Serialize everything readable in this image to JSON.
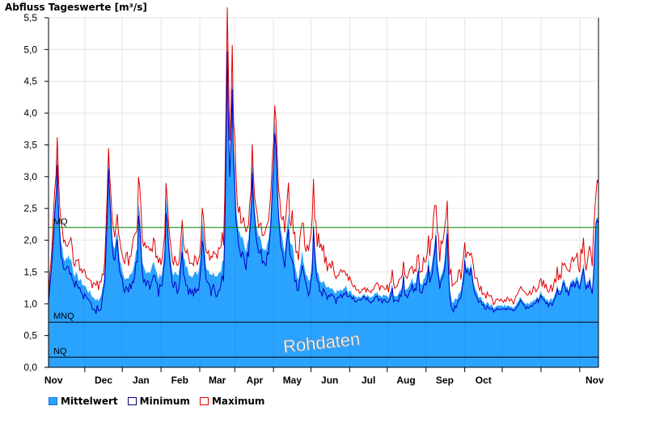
{
  "chart_data": {
    "type": "area",
    "title": "Abfluss Tageswerte [m³/s]",
    "ylim": [
      0,
      5.5
    ],
    "yticks": [
      "0,0",
      "0,5",
      "1,0",
      "1,5",
      "2,0",
      "2,5",
      "3,0",
      "3,5",
      "4,0",
      "4,5",
      "5,0",
      "5,5"
    ],
    "months": [
      "Nov",
      "Dec",
      "Jan",
      "Feb",
      "Mar",
      "Apr",
      "May",
      "Jun",
      "Jul",
      "Aug",
      "Sep",
      "Oct",
      "Nov"
    ],
    "grid": true,
    "watermark": "Rohdaten",
    "reference_lines": [
      {
        "label": "MQ",
        "value": 2.2,
        "color": "#008000"
      },
      {
        "label": "MNQ",
        "value": 0.71,
        "color": "#000000"
      },
      {
        "label": "NQ",
        "value": 0.16,
        "color": "#000000"
      }
    ],
    "series": [
      {
        "name": "Mittelwert",
        "color": "#2aa3ff"
      },
      {
        "name": "Minimum",
        "color": "#0000c0"
      },
      {
        "name": "Maximum",
        "color": "#e00000"
      }
    ],
    "mean_keypoints": [
      [
        0,
        1.1
      ],
      [
        2,
        1.6
      ],
      [
        4,
        2.2
      ],
      [
        6,
        2.9
      ],
      [
        7,
        3.3
      ],
      [
        8,
        2.6
      ],
      [
        10,
        2.0
      ],
      [
        12,
        1.7
      ],
      [
        16,
        1.75
      ],
      [
        18,
        1.7
      ],
      [
        20,
        1.5
      ],
      [
        24,
        1.4
      ],
      [
        28,
        1.3
      ],
      [
        32,
        1.2
      ],
      [
        36,
        1.1
      ],
      [
        40,
        1.05
      ],
      [
        43,
        1.2
      ],
      [
        45,
        1.5
      ],
      [
        47,
        2.6
      ],
      [
        48,
        3.2
      ],
      [
        49,
        2.8
      ],
      [
        51,
        2.0
      ],
      [
        53,
        1.9
      ],
      [
        55,
        2.2
      ],
      [
        57,
        1.7
      ],
      [
        60,
        1.4
      ],
      [
        64,
        1.4
      ],
      [
        67,
        1.5
      ],
      [
        69,
        1.7
      ],
      [
        71,
        1.9
      ],
      [
        72,
        2.6
      ],
      [
        73,
        2.4
      ],
      [
        75,
        1.6
      ],
      [
        78,
        1.45
      ],
      [
        82,
        1.55
      ],
      [
        84,
        1.7
      ],
      [
        86,
        1.5
      ],
      [
        88,
        1.4
      ],
      [
        91,
        1.5
      ],
      [
        93,
        1.9
      ],
      [
        94,
        2.8
      ],
      [
        95,
        2.4
      ],
      [
        97,
        1.8
      ],
      [
        99,
        1.5
      ],
      [
        102,
        1.45
      ],
      [
        104,
        1.5
      ],
      [
        106,
        1.8
      ],
      [
        107,
        2.1
      ],
      [
        108,
        1.7
      ],
      [
        112,
        1.5
      ],
      [
        116,
        1.45
      ],
      [
        120,
        1.5
      ],
      [
        122,
        1.9
      ],
      [
        123,
        2.3
      ],
      [
        124,
        2.2
      ],
      [
        126,
        1.6
      ],
      [
        128,
        1.5
      ],
      [
        131,
        1.5
      ],
      [
        134,
        1.45
      ],
      [
        137,
        1.5
      ],
      [
        140,
        1.7
      ],
      [
        141,
        2.4
      ],
      [
        143,
        5.0
      ],
      [
        144,
        4.0
      ],
      [
        145,
        3.2
      ],
      [
        147,
        4.6
      ],
      [
        148,
        3.6
      ],
      [
        150,
        2.6
      ],
      [
        152,
        2.2
      ],
      [
        154,
        2.1
      ],
      [
        156,
        2.0
      ],
      [
        158,
        1.8
      ],
      [
        160,
        2.0
      ],
      [
        162,
        2.7
      ],
      [
        163,
        3.2
      ],
      [
        164,
        2.8
      ],
      [
        166,
        2.2
      ],
      [
        169,
        2.0
      ],
      [
        172,
        1.85
      ],
      [
        174,
        1.8
      ],
      [
        177,
        2.1
      ],
      [
        178,
        2.5
      ],
      [
        180,
        3.3
      ],
      [
        181,
        4.0
      ],
      [
        182,
        3.5
      ],
      [
        184,
        2.5
      ],
      [
        186,
        2.1
      ],
      [
        189,
        1.8
      ],
      [
        191,
        2.2
      ],
      [
        192,
        2.5
      ],
      [
        193,
        2.0
      ],
      [
        196,
        1.8
      ],
      [
        198,
        1.5
      ],
      [
        200,
        1.4
      ],
      [
        202,
        1.7
      ],
      [
        203,
        1.9
      ],
      [
        204,
        1.6
      ],
      [
        206,
        1.5
      ],
      [
        209,
        1.35
      ],
      [
        211,
        1.7
      ],
      [
        212,
        2.4
      ],
      [
        213,
        1.9
      ],
      [
        215,
        1.5
      ],
      [
        218,
        1.35
      ],
      [
        222,
        1.3
      ],
      [
        226,
        1.25
      ],
      [
        230,
        1.2
      ],
      [
        234,
        1.2
      ],
      [
        238,
        1.3
      ],
      [
        240,
        1.2
      ],
      [
        244,
        1.15
      ],
      [
        248,
        1.1
      ],
      [
        252,
        1.12
      ],
      [
        256,
        1.1
      ],
      [
        260,
        1.15
      ],
      [
        264,
        1.15
      ],
      [
        268,
        1.12
      ],
      [
        272,
        1.1
      ],
      [
        275,
        1.3
      ],
      [
        276,
        1.1
      ],
      [
        280,
        1.15
      ],
      [
        283,
        1.3
      ],
      [
        284,
        1.5
      ],
      [
        285,
        1.2
      ],
      [
        288,
        1.25
      ],
      [
        291,
        1.45
      ],
      [
        292,
        1.3
      ],
      [
        294,
        1.3
      ],
      [
        296,
        1.6
      ],
      [
        297,
        1.3
      ],
      [
        300,
        1.35
      ],
      [
        303,
        1.55
      ],
      [
        304,
        1.8
      ],
      [
        305,
        1.5
      ],
      [
        307,
        1.6
      ],
      [
        309,
        1.95
      ],
      [
        310,
        2.2
      ],
      [
        311,
        1.7
      ],
      [
        313,
        1.4
      ],
      [
        315,
        1.5
      ],
      [
        317,
        1.7
      ],
      [
        318,
        2.0
      ],
      [
        319,
        2.3
      ],
      [
        320,
        1.6
      ],
      [
        321,
        1.2
      ],
      [
        323,
        1.05
      ],
      [
        327,
        1.1
      ],
      [
        330,
        1.25
      ],
      [
        332,
        1.5
      ],
      [
        333,
        1.75
      ],
      [
        334,
        1.5
      ],
      [
        336,
        1.6
      ],
      [
        338,
        1.6
      ],
      [
        340,
        1.3
      ],
      [
        343,
        1.15
      ],
      [
        346,
        1.1
      ],
      [
        349,
        1.0
      ],
      [
        352,
        1.0
      ],
      [
        356,
        0.95
      ],
      [
        360,
        1.0
      ],
      [
        364,
        0.95
      ],
      [
        368,
        1.0
      ],
      [
        372,
        0.95
      ],
      [
        376,
        1.05
      ],
      [
        378,
        1.1
      ],
      [
        380,
        1.0
      ],
      [
        384,
        1.0
      ],
      [
        388,
        1.05
      ],
      [
        392,
        1.1
      ],
      [
        394,
        1.2
      ],
      [
        396,
        1.1
      ],
      [
        400,
        1.05
      ],
      [
        404,
        1.1
      ],
      [
        407,
        1.3
      ],
      [
        408,
        1.2
      ],
      [
        410,
        1.25
      ],
      [
        412,
        1.4
      ],
      [
        414,
        1.3
      ],
      [
        416,
        1.2
      ],
      [
        419,
        1.4
      ],
      [
        421,
        1.3
      ],
      [
        423,
        1.45
      ],
      [
        425,
        1.3
      ],
      [
        428,
        1.6
      ],
      [
        430,
        1.3
      ],
      [
        433,
        1.4
      ],
      [
        435,
        1.2
      ],
      [
        437,
        1.9
      ],
      [
        438,
        2.4
      ],
      [
        440,
        2.35
      ]
    ],
    "max_offset_keypoints": [
      [
        0,
        0.08
      ],
      [
        7,
        0.3
      ],
      [
        48,
        0.2
      ],
      [
        72,
        0.4
      ],
      [
        94,
        0.25
      ],
      [
        123,
        0.2
      ],
      [
        143,
        0.4
      ],
      [
        147,
        0.45
      ],
      [
        163,
        0.2
      ],
      [
        181,
        0.35
      ],
      [
        192,
        0.4
      ],
      [
        212,
        0.55
      ],
      [
        250,
        0.08
      ],
      [
        296,
        0.25
      ],
      [
        304,
        0.3
      ],
      [
        310,
        0.5
      ],
      [
        319,
        0.38
      ],
      [
        333,
        0.25
      ],
      [
        360,
        0.08
      ],
      [
        412,
        0.25
      ],
      [
        428,
        0.35
      ],
      [
        438,
        0.5
      ]
    ],
    "min_offset_keypoints": [
      [
        0,
        0.06
      ],
      [
        7,
        0.2
      ],
      [
        48,
        0.15
      ],
      [
        72,
        0.2
      ],
      [
        143,
        0.3
      ],
      [
        147,
        0.25
      ],
      [
        181,
        0.2
      ],
      [
        212,
        0.2
      ],
      [
        250,
        0.05
      ],
      [
        310,
        0.15
      ],
      [
        360,
        0.05
      ],
      [
        440,
        0.08
      ]
    ]
  },
  "legend": {
    "mean_label": "Mittelwert",
    "min_label": "Minimum",
    "max_label": "Maximum"
  }
}
